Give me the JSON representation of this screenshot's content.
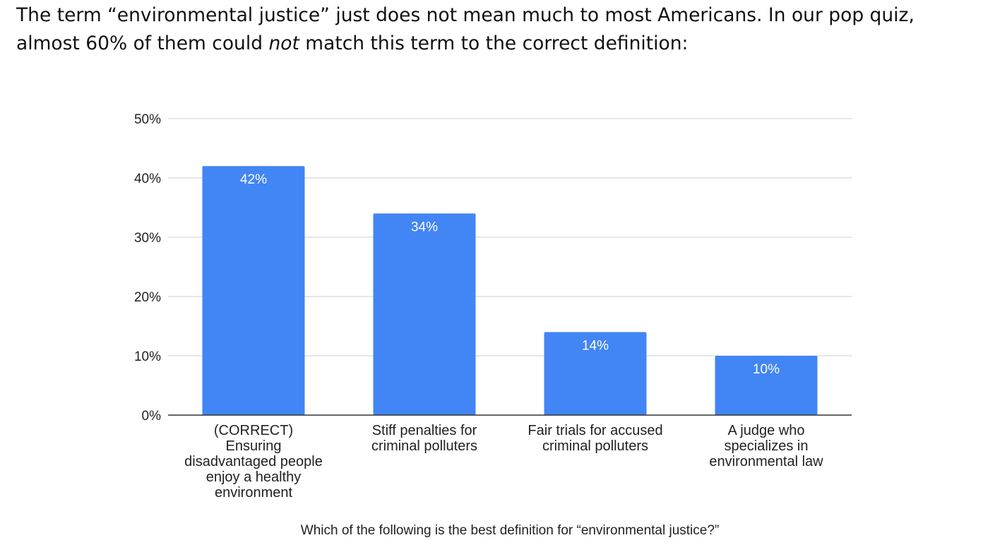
{
  "intro": {
    "before": "The term “environmental justice” just does not mean much to most Americans. In our pop quiz, almost 60% of them could ",
    "emphasis": "not",
    "after": " match this term to the correct definition:"
  },
  "chart_data": {
    "type": "bar",
    "categories": [
      [
        "(CORRECT)",
        "Ensuring",
        "disadvantaged people",
        "enjoy a healthy",
        "environment"
      ],
      [
        "Stiff penalties for",
        "criminal polluters"
      ],
      [
        "Fair trials for accused",
        "criminal polluters"
      ],
      [
        "A judge who",
        "specializes in",
        "environmental law"
      ]
    ],
    "values": [
      42,
      34,
      14,
      10
    ],
    "data_labels": [
      "42%",
      "34%",
      "14%",
      "10%"
    ],
    "title": "",
    "xlabel": "Which of the following is the best definition for “environmental justice?”",
    "ylabel": "",
    "ylim": [
      0,
      50
    ],
    "yticks": [
      0,
      10,
      20,
      30,
      40,
      50
    ],
    "ytick_labels": [
      "0%",
      "10%",
      "20%",
      "30%",
      "40%",
      "50%"
    ],
    "grid": true,
    "legend": "none",
    "bar_color": "#4285f4"
  }
}
